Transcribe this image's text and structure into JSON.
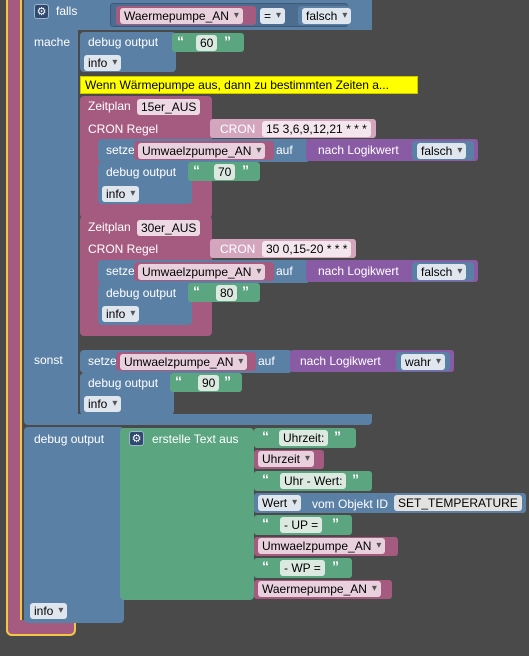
{
  "if_block": {
    "falls": "falls",
    "mache": "mache",
    "sonst": "sonst",
    "cond_var": "Waermepumpe_AN",
    "cond_op": "=",
    "cond_value": "falsch"
  },
  "debug1": {
    "label": "debug output",
    "value": "60",
    "level": "info"
  },
  "comment": "Wenn Wärmepumpe aus, dann zu bestimmten Zeiten a...",
  "schedule1": {
    "zeitplan": "Zeitplan",
    "name": "15er_AUS",
    "cron_regel": "CRON Regel",
    "cron": "CRON",
    "expr": "15 3,6,9,12,21 * * *",
    "setze": "setze",
    "var": "Umwaelzpumpe_AN",
    "auf": "auf",
    "nach": "nach Logikwert",
    "value": "falsch",
    "debug_label": "debug output",
    "debug_value": "70",
    "level": "info"
  },
  "schedule2": {
    "zeitplan": "Zeitplan",
    "name": "30er_AUS",
    "cron_regel": "CRON Regel",
    "cron": "CRON",
    "expr": "30 0,15-20 * * *",
    "setze": "setze",
    "var": "Umwaelzpumpe_AN",
    "auf": "auf",
    "nach": "nach Logikwert",
    "value": "falsch",
    "debug_label": "debug output",
    "debug_value": "80",
    "level": "info"
  },
  "else_branch": {
    "setze": "setze",
    "var": "Umwaelzpumpe_AN",
    "auf": "auf",
    "nach": "nach Logikwert",
    "value": "wahr",
    "debug_label": "debug output",
    "debug_value": "90",
    "level": "info"
  },
  "debug_main": {
    "label": "debug output",
    "text_block": "erstelle Text aus",
    "item1": "Uhrzeit:",
    "item2": "Uhrzeit",
    "item3": "Uhr - Wert:",
    "item4_prop": "Wert",
    "item4_mid": "vom Objekt ID",
    "item4_id": "SET_TEMPERATURE",
    "item5": "- UP =",
    "item6": "Umwaelzpumpe_AN",
    "item7": "- WP =",
    "item8": "Waermepumpe_AN",
    "level": "info"
  },
  "colors": {
    "logic_blue": "#5b80a5",
    "schedule_pink": "#a55b80",
    "text_green": "#5ba580",
    "logic_purple": "#8a5ba5",
    "highlight": "#f2c744"
  }
}
